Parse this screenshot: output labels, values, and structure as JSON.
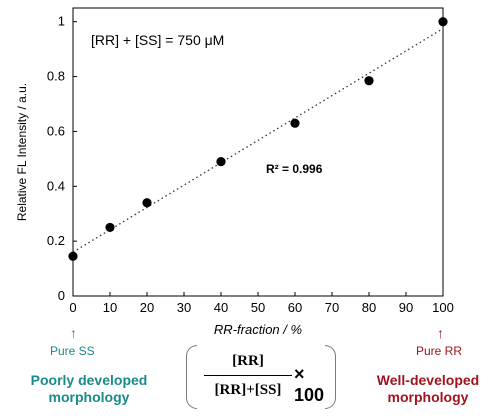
{
  "chart_data": {
    "type": "scatter",
    "annotation": "[RR] + [SS] = 750 μM",
    "fit_label": "R² = 0.996",
    "xlabel": "RR-fraction / %",
    "ylabel": "Relative FL Intensity / a.u.",
    "xlim": [
      0,
      100
    ],
    "ylim": [
      0,
      1.05
    ],
    "xticks": [
      0,
      10,
      20,
      30,
      40,
      50,
      60,
      70,
      80,
      90,
      100
    ],
    "yticks": [
      0,
      0.2,
      0.4,
      0.6,
      0.8,
      1
    ],
    "grid": false,
    "series": [
      {
        "x": [
          0,
          10,
          20,
          40,
          60,
          80,
          100
        ],
        "y": [
          0.145,
          0.25,
          0.34,
          0.49,
          0.63,
          0.785,
          1.0
        ]
      }
    ],
    "fit_line": {
      "style": "dotted",
      "x": [
        0,
        100
      ],
      "y": [
        0.16,
        0.975
      ]
    }
  },
  "labels": {
    "pure_ss": "Pure SS",
    "pure_rr": "Pure RR",
    "left_caption_1": "Poorly developed",
    "left_caption_2": "morphology",
    "right_caption_1": "Well-developed",
    "right_caption_2": "morphology",
    "arrow_glyph": "↑",
    "formula_num": "[RR]",
    "formula_den": "[RR]+[SS]",
    "formula_times": "× 100"
  },
  "colors": {
    "teal": "#1a8a8a",
    "dark_red": "#a0141e",
    "marker": "#000000",
    "fit": "#333333"
  }
}
